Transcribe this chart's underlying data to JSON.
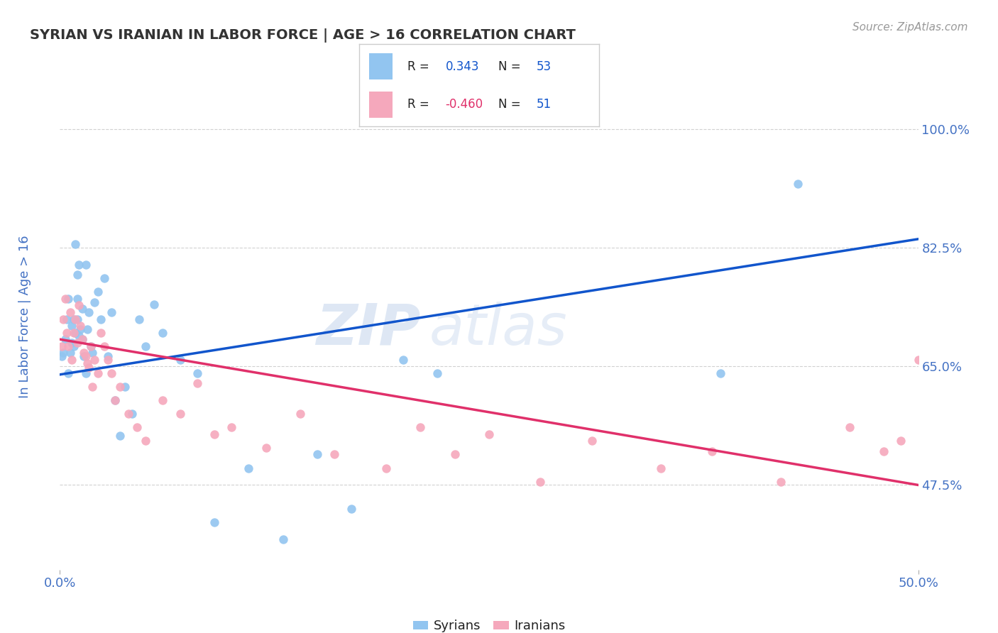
{
  "title": "SYRIAN VS IRANIAN IN LABOR FORCE | AGE > 16 CORRELATION CHART",
  "source_text": "Source: ZipAtlas.com",
  "ylabel": "In Labor Force | Age > 16",
  "xlim": [
    0.0,
    0.5
  ],
  "ylim": [
    0.35,
    1.06
  ],
  "xtick_labels": [
    "0.0%",
    "50.0%"
  ],
  "xtick_vals": [
    0.0,
    0.5
  ],
  "ytick_labels": [
    "47.5%",
    "65.0%",
    "82.5%",
    "100.0%"
  ],
  "ytick_vals": [
    0.475,
    0.65,
    0.825,
    1.0
  ],
  "syrian_color": "#92C5F0",
  "iranian_color": "#F5A8BC",
  "syrian_trend_color": "#1155CC",
  "iranian_trend_color": "#E0306A",
  "legend_R_syrian": "0.343",
  "legend_N_syrian": "53",
  "legend_R_iranian": "-0.460",
  "legend_N_iranian": "51",
  "watermark_zip": "ZIP",
  "watermark_atlas": "atlas",
  "background_color": "#ffffff",
  "grid_color": "#cccccc",
  "title_color": "#333333",
  "axis_label_color": "#4472C4",
  "text_color_dark": "#222222",
  "syrians_x": [
    0.001,
    0.002,
    0.003,
    0.004,
    0.005,
    0.005,
    0.006,
    0.007,
    0.007,
    0.008,
    0.008,
    0.009,
    0.009,
    0.01,
    0.01,
    0.01,
    0.011,
    0.011,
    0.012,
    0.013,
    0.013,
    0.014,
    0.015,
    0.015,
    0.016,
    0.017,
    0.018,
    0.019,
    0.02,
    0.022,
    0.024,
    0.026,
    0.028,
    0.03,
    0.032,
    0.035,
    0.038,
    0.042,
    0.046,
    0.05,
    0.055,
    0.06,
    0.07,
    0.08,
    0.09,
    0.11,
    0.13,
    0.15,
    0.17,
    0.2,
    0.22,
    0.385,
    0.43
  ],
  "syrians_y": [
    0.665,
    0.67,
    0.69,
    0.72,
    0.75,
    0.64,
    0.67,
    0.71,
    0.685,
    0.72,
    0.68,
    0.7,
    0.83,
    0.785,
    0.75,
    0.72,
    0.695,
    0.8,
    0.705,
    0.69,
    0.735,
    0.665,
    0.64,
    0.8,
    0.705,
    0.73,
    0.68,
    0.67,
    0.745,
    0.76,
    0.72,
    0.78,
    0.665,
    0.73,
    0.6,
    0.548,
    0.62,
    0.58,
    0.72,
    0.68,
    0.742,
    0.7,
    0.66,
    0.64,
    0.42,
    0.5,
    0.395,
    0.52,
    0.44,
    0.66,
    0.64,
    0.64,
    0.92
  ],
  "iranians_x": [
    0.001,
    0.002,
    0.003,
    0.004,
    0.005,
    0.006,
    0.007,
    0.008,
    0.009,
    0.01,
    0.011,
    0.012,
    0.013,
    0.014,
    0.015,
    0.016,
    0.017,
    0.018,
    0.019,
    0.02,
    0.022,
    0.024,
    0.026,
    0.028,
    0.03,
    0.032,
    0.035,
    0.04,
    0.045,
    0.05,
    0.06,
    0.07,
    0.08,
    0.09,
    0.1,
    0.12,
    0.14,
    0.16,
    0.19,
    0.21,
    0.23,
    0.25,
    0.28,
    0.31,
    0.35,
    0.38,
    0.42,
    0.46,
    0.48,
    0.5,
    0.49
  ],
  "iranians_y": [
    0.68,
    0.72,
    0.75,
    0.7,
    0.68,
    0.73,
    0.66,
    0.7,
    0.72,
    0.685,
    0.74,
    0.71,
    0.69,
    0.67,
    0.665,
    0.655,
    0.648,
    0.68,
    0.62,
    0.66,
    0.64,
    0.7,
    0.68,
    0.66,
    0.64,
    0.6,
    0.62,
    0.58,
    0.56,
    0.54,
    0.6,
    0.58,
    0.625,
    0.55,
    0.56,
    0.53,
    0.58,
    0.52,
    0.5,
    0.56,
    0.52,
    0.55,
    0.48,
    0.54,
    0.5,
    0.525,
    0.48,
    0.56,
    0.525,
    0.66,
    0.54
  ],
  "syrian_trend_x": [
    0.0,
    0.5
  ],
  "syrian_trend_y": [
    0.638,
    0.838
  ],
  "iranian_trend_x": [
    0.0,
    0.5
  ],
  "iranian_trend_y": [
    0.69,
    0.475
  ]
}
